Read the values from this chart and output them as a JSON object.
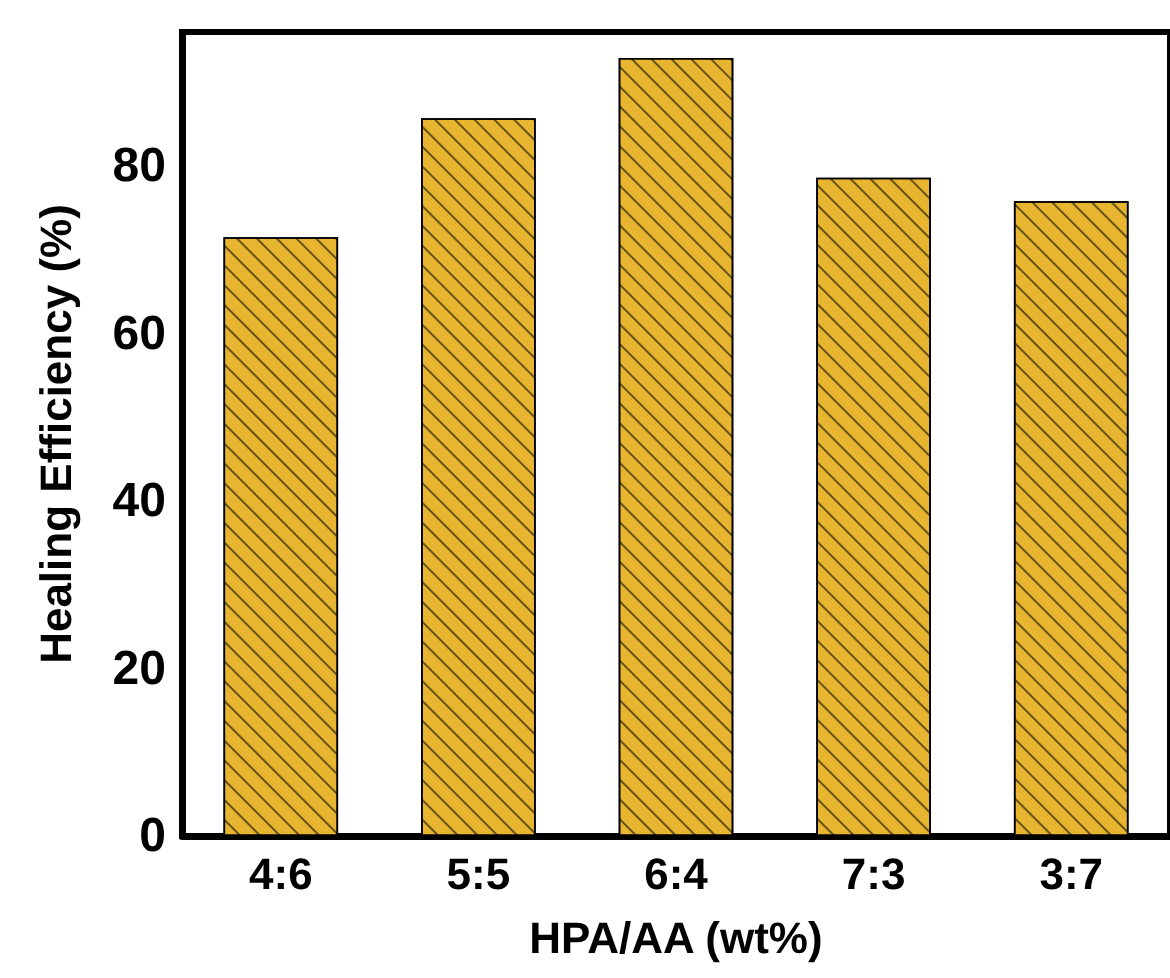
{
  "chart_data": {
    "type": "bar",
    "xlabel": "HPA/AA (wt%)",
    "ylabel": "Healing Efficiency (%)",
    "categories": [
      "4:6",
      "5:5",
      "6:4",
      "7:3",
      "3:7"
    ],
    "values": [
      71.5,
      85.7,
      92.9,
      78.6,
      75.8
    ],
    "color": "#e8b530",
    "ylim": [
      0,
      96
    ],
    "yticks": [
      0,
      20,
      40,
      60,
      80
    ],
    "grid": false
  }
}
